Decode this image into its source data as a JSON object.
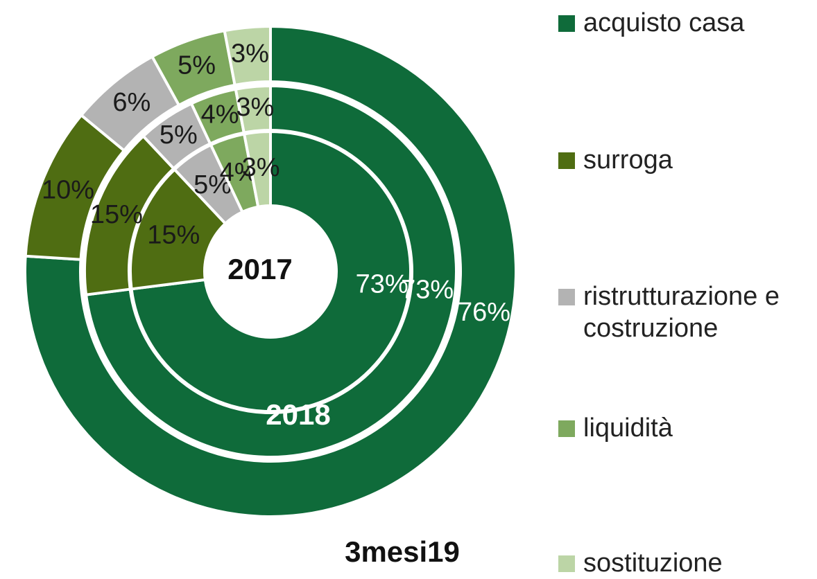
{
  "chart_data": {
    "type": "nested-donut",
    "categories": [
      "acquisto casa",
      "surroga",
      "ristrutturazione e costruzione",
      "liquidità",
      "sostituzione"
    ],
    "colors": [
      "#0f6b3a",
      "#4f6d12",
      "#b3b3b3",
      "#7ea95e",
      "#bcd5a6"
    ],
    "rings": [
      {
        "name": "2017",
        "values": [
          73,
          15,
          5,
          4,
          3
        ],
        "value_labels": [
          "73%",
          "15%",
          "5%",
          "4%",
          "3%"
        ]
      },
      {
        "name": "2018",
        "values": [
          73,
          15,
          5,
          4,
          3
        ],
        "value_labels": [
          "73%",
          "15%",
          "5%",
          "4%",
          "3%"
        ]
      },
      {
        "name": "3mesi19",
        "values": [
          76,
          10,
          6,
          5,
          3
        ],
        "value_labels": [
          "76%",
          "10%",
          "6%",
          "5%",
          "3%"
        ]
      }
    ]
  }
}
